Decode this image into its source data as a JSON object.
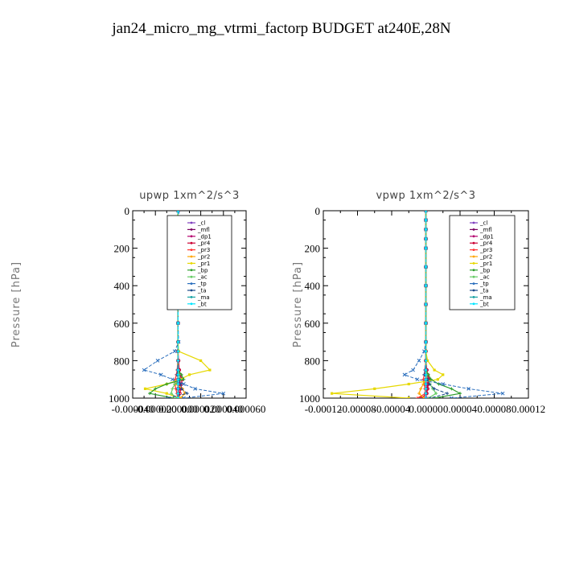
{
  "figure_title": "jan24_micro_mg_vtrmi_factorp  BUDGET at240E,28N",
  "chart_data": [
    {
      "type": "line",
      "title": "upwp   1xm^2/s^3",
      "ylabel": "Pressure [hPa]",
      "ylim": [
        1000,
        0
      ],
      "xlim": [
        -4e-05,
        6e-05
      ],
      "y_ticks": [
        0,
        200,
        400,
        600,
        800,
        1000
      ],
      "y_tick_labels": [
        "0",
        "200",
        "400",
        "600",
        "800",
        "1000"
      ],
      "x_ticks": [
        -4e-05,
        -2e-05,
        0,
        2e-05,
        4e-05,
        6e-05
      ],
      "x_tick_labels": [
        "-0.000040",
        "-0.000020",
        "0.000000",
        "0.000020",
        "0.000040",
        "0.000060"
      ],
      "legend_position": "top-right",
      "pressure_levels": [
        0,
        50,
        100,
        150,
        200,
        300,
        400,
        500,
        600,
        700,
        750,
        800,
        850,
        875,
        900,
        925,
        950,
        975,
        1000
      ],
      "series": [
        {
          "name": "_cl",
          "color": "#7f3fbf",
          "values": [
            0,
            0,
            0,
            0,
            0,
            0,
            0,
            0,
            0,
            0,
            0,
            0,
            0,
            0,
            0,
            0,
            0,
            0,
            0
          ]
        },
        {
          "name": "_mfl",
          "color": "#7a0060",
          "values": [
            0,
            0,
            0,
            0,
            0,
            0,
            0,
            0,
            0,
            0,
            0,
            0,
            0,
            0,
            0,
            0,
            0,
            0,
            0
          ]
        },
        {
          "name": "_dp1",
          "color": "#b4006e",
          "values": [
            0,
            0,
            0,
            0,
            0,
            0,
            0,
            0,
            0,
            0,
            0,
            0,
            8e-07,
            1.5e-06,
            2e-06,
            1.5e-06,
            8e-07,
            3e-07,
            0
          ]
        },
        {
          "name": "_pr4",
          "color": "#cc0033",
          "values": [
            0,
            0,
            0,
            0,
            0,
            0,
            0,
            0,
            0,
            0,
            0,
            4e-07,
            1e-06,
            2e-06,
            3.5e-06,
            3e-06,
            2.5e-06,
            1.5e-06,
            5e-07
          ]
        },
        {
          "name": "_pr3",
          "color": "#ff3333",
          "values": [
            0,
            0,
            0,
            0,
            0,
            0,
            0,
            0,
            0,
            0,
            0,
            -3e-07,
            -8e-07,
            -1.5e-06,
            -2.5e-06,
            -3e-06,
            -2e-06,
            -1e-06,
            -5e-07
          ]
        },
        {
          "name": "_pr2",
          "color": "#ffa500",
          "values": [
            0,
            -5e-07,
            -8e-07,
            -3e-07,
            0,
            0,
            0,
            0,
            0,
            0,
            0,
            0,
            0,
            0,
            0,
            -2e-06,
            4e-06,
            6e-06,
            2e-06
          ]
        },
        {
          "name": "_pr1",
          "color": "#e6d800",
          "values": [
            0,
            -5e-07,
            -1e-06,
            -3e-07,
            0,
            0,
            0,
            0,
            0,
            0,
            5e-07,
            2e-05,
            2.8e-05,
            1e-05,
            2e-06,
            -1e-05,
            -2.9e-05,
            -1e-05,
            1e-06
          ]
        },
        {
          "name": "_bp",
          "color": "#2e9e2e",
          "values": [
            0,
            0,
            0,
            0,
            0,
            0,
            0,
            0,
            0,
            0,
            0,
            0,
            0,
            3e-06,
            5e-06,
            -1e-05,
            -2e-05,
            -2.5e-05,
            -4e-06
          ]
        },
        {
          "name": "_ac",
          "color": "#66cc66",
          "values": [
            0,
            0,
            0,
            0,
            0,
            0,
            0,
            0,
            0,
            0,
            0,
            0,
            0,
            1e-06,
            2e-06,
            -3e-06,
            -5e-06,
            -6e-06,
            -1e-06
          ]
        },
        {
          "name": "_tp",
          "color": "#2a6ebd",
          "values": [
            0,
            3e-06,
            3e-06,
            1.5e-06,
            5e-07,
            0,
            0,
            0,
            0,
            5e-07,
            -3e-06,
            -1.8e-05,
            -3e-05,
            -1.5e-05,
            -5e-06,
            5e-06,
            1.5e-05,
            4e-05,
            5e-06
          ]
        },
        {
          "name": "_ta",
          "color": "#1a4a8a",
          "values": [
            0,
            0,
            0,
            0,
            0,
            0,
            0,
            0,
            0,
            0,
            0,
            0,
            -5e-07,
            -1e-06,
            1e-06,
            2e-06,
            3e-06,
            8e-06,
            -1e-05
          ]
        },
        {
          "name": "_ma",
          "color": "#17a3a3",
          "values": [
            0,
            0,
            0,
            0,
            0,
            0,
            0,
            0,
            0,
            0,
            0,
            0,
            0,
            0,
            0,
            0,
            0,
            0,
            0
          ]
        },
        {
          "name": "_bt",
          "color": "#00e5ff",
          "values": [
            0,
            0,
            0,
            0,
            0,
            0,
            0,
            0,
            0,
            0,
            0,
            0,
            0,
            0,
            0,
            0,
            0,
            0,
            0
          ]
        }
      ]
    },
    {
      "type": "line",
      "title": "vpwp   1xm^2/s^3",
      "ylabel": "Pressure [hPa]",
      "ylim": [
        1000,
        0
      ],
      "xlim": [
        -0.00012,
        0.00012
      ],
      "y_ticks": [
        0,
        200,
        400,
        600,
        800,
        1000
      ],
      "y_tick_labels": [
        "0",
        "200",
        "400",
        "600",
        "800",
        "1000"
      ],
      "x_ticks": [
        -0.00012,
        -8e-05,
        -4e-05,
        0,
        4e-05,
        8e-05,
        0.00012
      ],
      "x_tick_labels": [
        "-0.00012",
        "-0.00008",
        "-0.00004",
        "0.00000",
        "0.00004",
        "0.00008",
        "0.00012"
      ],
      "legend_position": "top-right",
      "pressure_levels": [
        0,
        50,
        100,
        150,
        200,
        300,
        400,
        500,
        600,
        700,
        750,
        800,
        850,
        875,
        900,
        925,
        950,
        975,
        1000
      ],
      "series": [
        {
          "name": "_cl",
          "color": "#7f3fbf",
          "values": [
            0,
            0,
            0,
            0,
            0,
            0,
            0,
            0,
            0,
            0,
            0,
            0,
            0,
            0,
            0,
            0,
            0,
            0,
            0
          ]
        },
        {
          "name": "_mfl",
          "color": "#7a0060",
          "values": [
            0,
            0,
            0,
            0,
            0,
            0,
            0,
            0,
            0,
            0,
            0,
            0,
            0,
            0,
            0,
            0,
            0,
            0,
            0
          ]
        },
        {
          "name": "_dp1",
          "color": "#b4006e",
          "values": [
            0,
            0,
            0,
            0,
            0,
            0,
            0,
            0,
            0,
            0,
            0,
            0,
            1e-06,
            2e-06,
            3e-06,
            2e-06,
            1e-06,
            5e-07,
            0
          ]
        },
        {
          "name": "_pr4",
          "color": "#cc0033",
          "values": [
            0,
            0,
            0,
            0,
            0,
            0,
            0,
            0,
            0,
            0,
            0,
            0,
            1e-06,
            2e-06,
            4e-06,
            3e-06,
            2e-06,
            1e-06,
            -5e-06
          ]
        },
        {
          "name": "_pr3",
          "color": "#ff3333",
          "values": [
            0,
            0,
            0,
            0,
            0,
            0,
            0,
            0,
            0,
            0,
            0,
            0,
            -1e-06,
            -2e-06,
            -3e-06,
            -2e-06,
            -1e-06,
            -5e-07,
            -1e-05
          ]
        },
        {
          "name": "_pr2",
          "color": "#ffa500",
          "values": [
            0,
            0,
            0,
            0,
            0,
            0,
            0,
            0,
            0,
            0,
            0,
            0,
            0,
            0,
            0,
            -3e-06,
            -6e-06,
            -8e-06,
            -2e-06
          ]
        },
        {
          "name": "_pr1",
          "color": "#e6d800",
          "values": [
            0,
            0,
            0,
            0,
            0,
            0,
            0,
            0,
            0,
            0,
            0,
            2e-06,
            1e-05,
            2e-05,
            1.4e-05,
            -2e-05,
            -6e-05,
            -0.00011,
            -2e-05
          ]
        },
        {
          "name": "_bp",
          "color": "#2e9e2e",
          "values": [
            0,
            0,
            0,
            0,
            0,
            0,
            0,
            0,
            0,
            0,
            0,
            0,
            0,
            3e-06,
            6e-06,
            1.5e-05,
            3e-05,
            4e-05,
            1e-05
          ]
        },
        {
          "name": "_ac",
          "color": "#66cc66",
          "values": [
            0,
            0,
            0,
            0,
            0,
            0,
            0,
            0,
            0,
            0,
            0,
            0,
            0,
            1e-06,
            2e-06,
            5e-06,
            8e-06,
            1.2e-05,
            3e-06
          ]
        },
        {
          "name": "_tp",
          "color": "#2a6ebd",
          "values": [
            0,
            0,
            0,
            0,
            0,
            0,
            0,
            0,
            0,
            0,
            -2e-06,
            -8e-06,
            -1.5e-05,
            -2.5e-05,
            -1e-05,
            2e-05,
            5e-05,
            9e-05,
            3e-05
          ]
        },
        {
          "name": "_ta",
          "color": "#1a4a8a",
          "values": [
            0,
            0,
            0,
            0,
            0,
            0,
            0,
            0,
            0,
            0,
            0,
            0,
            -1e-06,
            -2e-06,
            2e-06,
            4e-06,
            1e-05,
            2.5e-05,
            5e-06
          ]
        },
        {
          "name": "_ma",
          "color": "#17a3a3",
          "values": [
            0,
            0,
            0,
            0,
            0,
            0,
            0,
            0,
            0,
            0,
            0,
            0,
            0,
            0,
            0,
            0,
            0,
            0,
            0
          ]
        },
        {
          "name": "_bt",
          "color": "#00e5ff",
          "values": [
            0,
            0,
            0,
            0,
            0,
            0,
            0,
            0,
            0,
            0,
            0,
            0,
            0,
            0,
            0,
            0,
            0,
            0,
            0
          ]
        }
      ]
    }
  ]
}
